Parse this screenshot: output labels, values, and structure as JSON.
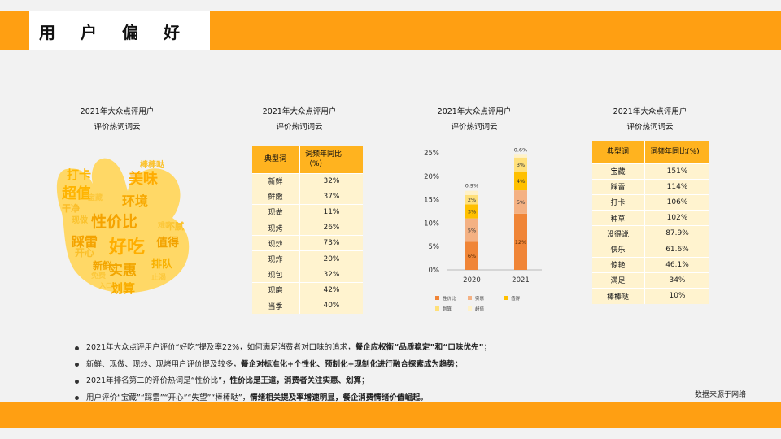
{
  "header": {
    "title": "用户偏好"
  },
  "cloud_panel": {
    "title_line1": "2021年大众点评用户",
    "title_line2": "评价热词词云",
    "words": [
      "好吃",
      "性价比",
      "实惠",
      "超值",
      "美味",
      "环境",
      "踩雷",
      "划算",
      "打卡",
      "新鲜",
      "值得",
      "排队",
      "开心",
      "干净",
      "现做",
      "不腻",
      "棒棒哒",
      "难吃",
      "免费",
      "止渴",
      "入口",
      "宝藏"
    ]
  },
  "table1": {
    "title_line1": "2021年大众点评用户",
    "title_line2": "评价热词词云",
    "headers": [
      "典型词",
      "词频年同比（%）"
    ],
    "rows": [
      [
        "新鲜",
        "32%"
      ],
      [
        "鲜嫩",
        "37%"
      ],
      [
        "现做",
        "11%"
      ],
      [
        "现烤",
        "26%"
      ],
      [
        "现炒",
        "73%"
      ],
      [
        "现炸",
        "20%"
      ],
      [
        "现包",
        "32%"
      ],
      [
        "现磨",
        "42%"
      ],
      [
        "当季",
        "40%"
      ]
    ]
  },
  "chart_panel": {
    "title_line1": "2021年大众点评用户",
    "title_line2": "评价热词词云"
  },
  "chart_data": {
    "type": "bar",
    "stacked": true,
    "categories": [
      "2020",
      "2021"
    ],
    "series": [
      {
        "name": "性价比",
        "values": [
          6,
          12
        ],
        "color": "#f08537"
      },
      {
        "name": "实惠",
        "values": [
          5,
          5
        ],
        "color": "#f4b183"
      },
      {
        "name": "值得",
        "values": [
          3,
          4
        ],
        "color": "#ffc000"
      },
      {
        "name": "划算",
        "values": [
          2,
          3
        ],
        "color": "#ffe07a"
      },
      {
        "name": "超值",
        "values": [
          0.9,
          0.6
        ],
        "color": "#fff2c8"
      }
    ],
    "labels": [
      [
        "6%",
        "5%",
        "3%",
        "2%",
        "0.9%"
      ],
      [
        "12%",
        "5%",
        "4%",
        "3%",
        "0.6%"
      ]
    ],
    "ylim": [
      0,
      25
    ],
    "yticks": [
      "0%",
      "5%",
      "10%",
      "15%",
      "20%",
      "25%"
    ],
    "yticks_values": [
      0,
      5,
      10,
      15,
      20,
      25
    ]
  },
  "table2": {
    "title_line1": "2021年大众点评用户",
    "title_line2": "评价热词词云",
    "headers": [
      "典型词",
      "词频年同比(%)"
    ],
    "rows": [
      [
        "宝藏",
        "151%"
      ],
      [
        "踩雷",
        "114%"
      ],
      [
        "打卡",
        "106%"
      ],
      [
        "种草",
        "102%"
      ],
      [
        "没得说",
        "87.9%"
      ],
      [
        "快乐",
        "61.6%"
      ],
      [
        "惊艳",
        "46.1%"
      ],
      [
        "满足",
        "34%"
      ],
      [
        "棒棒哒",
        "10%"
      ]
    ]
  },
  "bullets": [
    {
      "plain": "2021年大众点评用户评价“好吃”提及率22%，如何满足消费者对口味的追求，",
      "bold": "餐企应权衡“品质稳定”和“口味优先”",
      "tail": "；"
    },
    {
      "plain": "新鲜、现做、现炒、现烤用户评价提及较多，",
      "bold": "餐企对标准化+个性化、预制化+现制化进行融合探索成为趋势",
      "tail": "；"
    },
    {
      "plain": "2021年排名第二的评价热词是“性价比”，",
      "bold": "性价比是王道，消费者关注实惠、划算",
      "tail": "；"
    },
    {
      "plain": "用户评价“宝藏”“踩雷”“开心”“失望”“棒棒哒”，",
      "bold": "情绪相关提及率增速明显，餐企消费情绪价值崛起。",
      "tail": ""
    }
  ],
  "source_note": "数据来源于网络",
  "colors": {
    "accent": "#ff9f12",
    "table_header": "#ffb31f",
    "table_cell": "#fff3cf",
    "cloud_bg": "#ffd866"
  }
}
